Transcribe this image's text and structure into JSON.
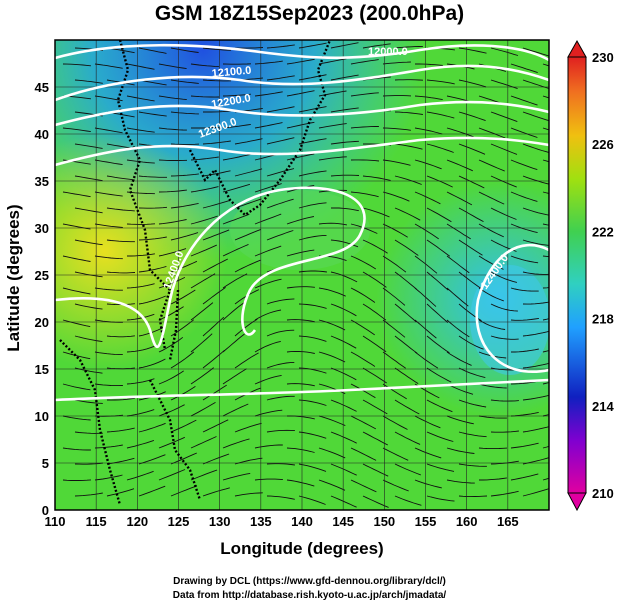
{
  "title": "GSM 18Z15Sep2023 (200.0hPa)",
  "axes": {
    "xlabel": "Longitude (degrees)",
    "ylabel": "Latitude  (degrees)",
    "x_ticks": [
      "110",
      "115",
      "120",
      "125",
      "130",
      "135",
      "140",
      "145",
      "150",
      "155",
      "160",
      "165"
    ],
    "y_ticks": [
      "0",
      "5",
      "10",
      "15",
      "20",
      "25",
      "30",
      "35",
      "40",
      "45"
    ]
  },
  "colorbar": {
    "labels": [
      "230",
      "226",
      "222",
      "218",
      "214",
      "210"
    ],
    "min": 210,
    "max": 230,
    "colors": [
      "#e0007c",
      "#1818c8",
      "#2090ff",
      "#30d0d0",
      "#40d070",
      "#60e020",
      "#b0e010",
      "#f0c010",
      "#f08020",
      "#e02020"
    ]
  },
  "contours": {
    "labels": [
      "12000.0",
      "12100.0",
      "12200.0",
      "12300.0",
      "12400.0",
      "12400.0"
    ]
  },
  "credits": {
    "line1": "Drawing by DCL (https://www.gfd-dennou.org/library/dcl/)",
    "line2": "Data from http://database.rish.kyoto-u.ac.jp/arch/jmadata/"
  }
}
